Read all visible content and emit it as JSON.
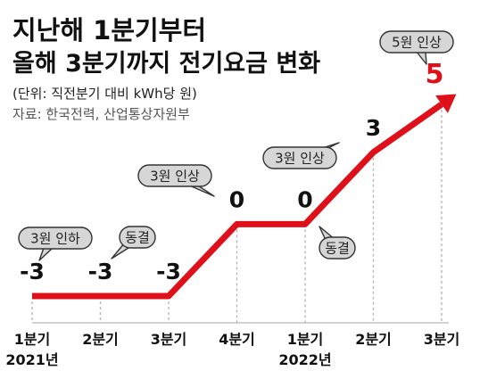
{
  "header": {
    "title_line1": "지난해 1분기부터",
    "title_line2": "올해 3분기까지 전기요금 변화",
    "unit": "(단위: 직전분기 대비 kWh당 원)",
    "source": "자료: 한국전력, 산업통상자원부"
  },
  "colors": {
    "line": "#e0101a",
    "text": "#111111",
    "muted": "#555555",
    "grid": "#b8b8b8",
    "bubble_fill": "#d6d6d6",
    "bubble_stroke": "#333333"
  },
  "chart_data": {
    "type": "line",
    "categories": [
      "1분기",
      "2분기",
      "3분기",
      "4분기",
      "1분기",
      "2분기",
      "3분기"
    ],
    "year_labels": [
      {
        "index": 0,
        "text": "2021년"
      },
      {
        "index": 4,
        "text": "2022년"
      }
    ],
    "values": [
      -3,
      -3,
      -3,
      0,
      0,
      3,
      5
    ],
    "value_labels": [
      "-3",
      "-3",
      "-3",
      "0",
      "0",
      "3",
      "5"
    ],
    "highlight_index": 6,
    "ylim": [
      -3,
      5
    ],
    "annotations": [
      {
        "text": "3원 인하",
        "index": 0
      },
      {
        "text": "동결",
        "index": 1
      },
      {
        "text": "3원 인상",
        "index": 3
      },
      {
        "text": "동결",
        "index": 4
      },
      {
        "text": "3원 인상",
        "index": 5
      },
      {
        "text": "5원 인상",
        "index": 6
      }
    ]
  }
}
